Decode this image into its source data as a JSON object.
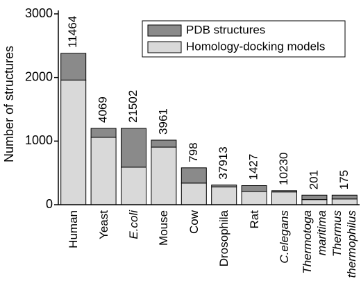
{
  "chart_data": {
    "type": "stacked-bar",
    "y_label": "Number of structures",
    "categories": [
      "Human",
      "Yeast",
      "E.coli",
      "Mouse",
      "Cow",
      "Drosophila",
      "Rat",
      "C.elegans",
      "Thermotoga maritima",
      "Thermus thermophilus"
    ],
    "italic_categories": [
      false,
      false,
      true,
      false,
      false,
      false,
      false,
      true,
      true,
      true
    ],
    "series": [
      {
        "name": "Homology-docking models",
        "color": "#d9d9d9",
        "values": [
          1960,
          1060,
          590,
          905,
          340,
          280,
          210,
          200,
          80,
          90
        ]
      },
      {
        "name": "PDB structures",
        "color": "#8a8a8a",
        "values": [
          420,
          140,
          610,
          110,
          240,
          30,
          90,
          20,
          70,
          60
        ]
      }
    ],
    "bar_annotations": [
      11464,
      4069,
      21502,
      3961,
      798,
      37913,
      1427,
      10230,
      201,
      175
    ],
    "ylim": [
      0,
      3000
    ],
    "yticks": [
      0,
      1000,
      2000,
      3000
    ]
  }
}
